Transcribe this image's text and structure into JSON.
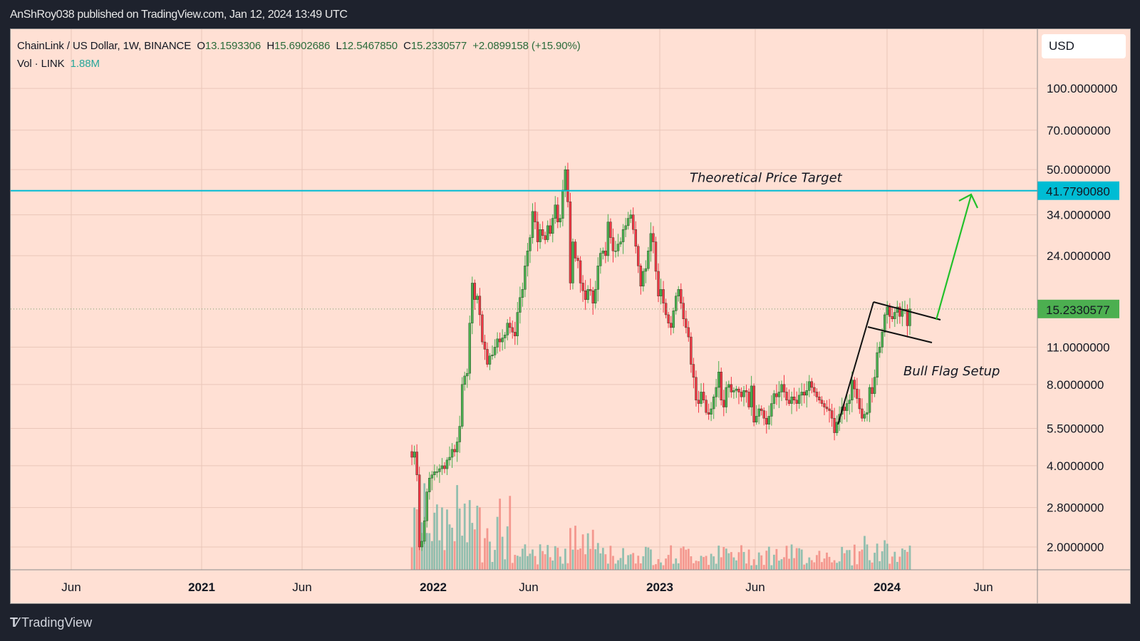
{
  "header": {
    "publisher_line": "AnShRoy038 published on TradingView.com, Jan 12, 2024 13:49 UTC"
  },
  "legend": {
    "symbol": "ChainLink / US Dollar, 1W, BINANCE",
    "open_label": "O",
    "open": "13.1593306",
    "high_label": "H",
    "high": "15.6902686",
    "low_label": "L",
    "low": "12.5467850",
    "close_label": "C",
    "close": "15.2330577",
    "change": "+2.0899158 (+15.90%)",
    "volume_label": "Vol · LINK",
    "volume": "1.88M"
  },
  "price_axis": {
    "currency": "USD",
    "ticks": [
      "100.0000000",
      "70.0000000",
      "50.0000000",
      "34.0000000",
      "24.0000000",
      "11.0000000",
      "8.0000000",
      "5.5000000",
      "4.0000000",
      "2.8000000",
      "2.0000000"
    ],
    "target_label": "41.7790080",
    "last_price_label": "15.2330577"
  },
  "time_axis": {
    "ticks": [
      "Jun",
      "2021",
      "Jun",
      "2022",
      "Jun",
      "2023",
      "Jun",
      "2024",
      "Jun"
    ]
  },
  "annotations": {
    "target_text": "Theoretical Price Target",
    "pattern_text": "Bull Flag Setup"
  },
  "footer": {
    "brand": "TradingView"
  },
  "colors": {
    "background": "#ffe0d4",
    "up": "#4caf50",
    "down": "#f23645",
    "target_line": "#00bcd4",
    "arrow": "#22c02a",
    "last_price_badge": "#4caf50",
    "vol_up": "#7fb8a8",
    "vol_down": "#f28b82"
  },
  "chart_data": {
    "type": "candlestick",
    "title": "ChainLink / US Dollar, 1W, BINANCE",
    "scale": "log",
    "ylabel": "USD",
    "ylim": [
      1.8,
      150
    ],
    "x_ticks": [
      "Jun 2020",
      "2021",
      "Jun 2021",
      "2022",
      "Jun 2022",
      "2023",
      "Jun 2023",
      "2024",
      "Jun 2024"
    ],
    "y_ticks": [
      100,
      70,
      50,
      34,
      24,
      11,
      8,
      5.5,
      4,
      2.8,
      2
    ],
    "horizontal_line": {
      "label": "Theoretical Price Target",
      "value": 41.779008
    },
    "last_close": 15.2330577,
    "last_candle": {
      "open": 13.1593306,
      "high": 15.6902686,
      "low": 12.546785,
      "close": 15.2330577,
      "volume": "1.88M"
    },
    "pattern": "Bull Flag Setup",
    "closes_weekly_approx": [
      4.3,
      4.5,
      3.7,
      2.0,
      2.1,
      2.5,
      3.2,
      3.6,
      3.7,
      3.8,
      3.8,
      3.9,
      4.0,
      3.9,
      4.2,
      4.3,
      4.6,
      4.5,
      4.9,
      5.6,
      8.0,
      8.6,
      8.8,
      13.5,
      19.0,
      16.5,
      17.0,
      14.5,
      11.5,
      10.8,
      9.5,
      10.2,
      10.3,
      11.0,
      11.8,
      11.5,
      11.9,
      12.2,
      13.5,
      13.0,
      12.5,
      12.1,
      14.8,
      16.8,
      18.0,
      22.0,
      25.0,
      28.0,
      35.0,
      32.0,
      27.0,
      30.0,
      28.5,
      27.5,
      31.0,
      29.0,
      33.0,
      37.0,
      32.0,
      33.0,
      42.0,
      50.0,
      38.0,
      19.0,
      27.0,
      23.5,
      23.0,
      19.0,
      17.8,
      16.5,
      18.0,
      17.8,
      16.0,
      18.0,
      22.0,
      24.5,
      25.0,
      24.0,
      32.0,
      28.0,
      25.0,
      25.0,
      26.5,
      27.0,
      30.0,
      31.0,
      33.0,
      34.0,
      30.0,
      26.0,
      22.0,
      18.5,
      21.0,
      21.5,
      25.0,
      29.0,
      27.0,
      21.0,
      17.0,
      18.0,
      16.0,
      14.5,
      13.5,
      13.0,
      15.0,
      17.0,
      18.0,
      16.0,
      14.0,
      13.0,
      12.0,
      9.5,
      8.5,
      7.0,
      6.8,
      7.5,
      7.0,
      6.3,
      6.2,
      6.5,
      7.2,
      7.8,
      8.9,
      7.0,
      6.6,
      7.8,
      8.0,
      7.5,
      7.6,
      7.7,
      7.5,
      7.2,
      7.6,
      7.5,
      6.6,
      7.9,
      5.8,
      6.1,
      6.5,
      6.4,
      6.0,
      5.7,
      6.1,
      6.8,
      7.4,
      7.2,
      7.5,
      8.0,
      7.5,
      7.0,
      6.8,
      7.2,
      7.0,
      6.8,
      7.3,
      7.5,
      7.3,
      7.6,
      8.2,
      7.8,
      7.5,
      7.2,
      7.0,
      6.8,
      6.6,
      6.5,
      6.4,
      6.0,
      5.3,
      5.8,
      6.2,
      6.6,
      6.4,
      6.8,
      7.0,
      8.3,
      7.7,
      7.1,
      6.5,
      6.0,
      6.2,
      6.3,
      7.8,
      7.4,
      8.5,
      10.5,
      11.0,
      12.5,
      14.5,
      15.5,
      14.3,
      14.0,
      14.8,
      15.5,
      14.3,
      15.0,
      15.2,
      13.2,
      15.23
    ]
  }
}
